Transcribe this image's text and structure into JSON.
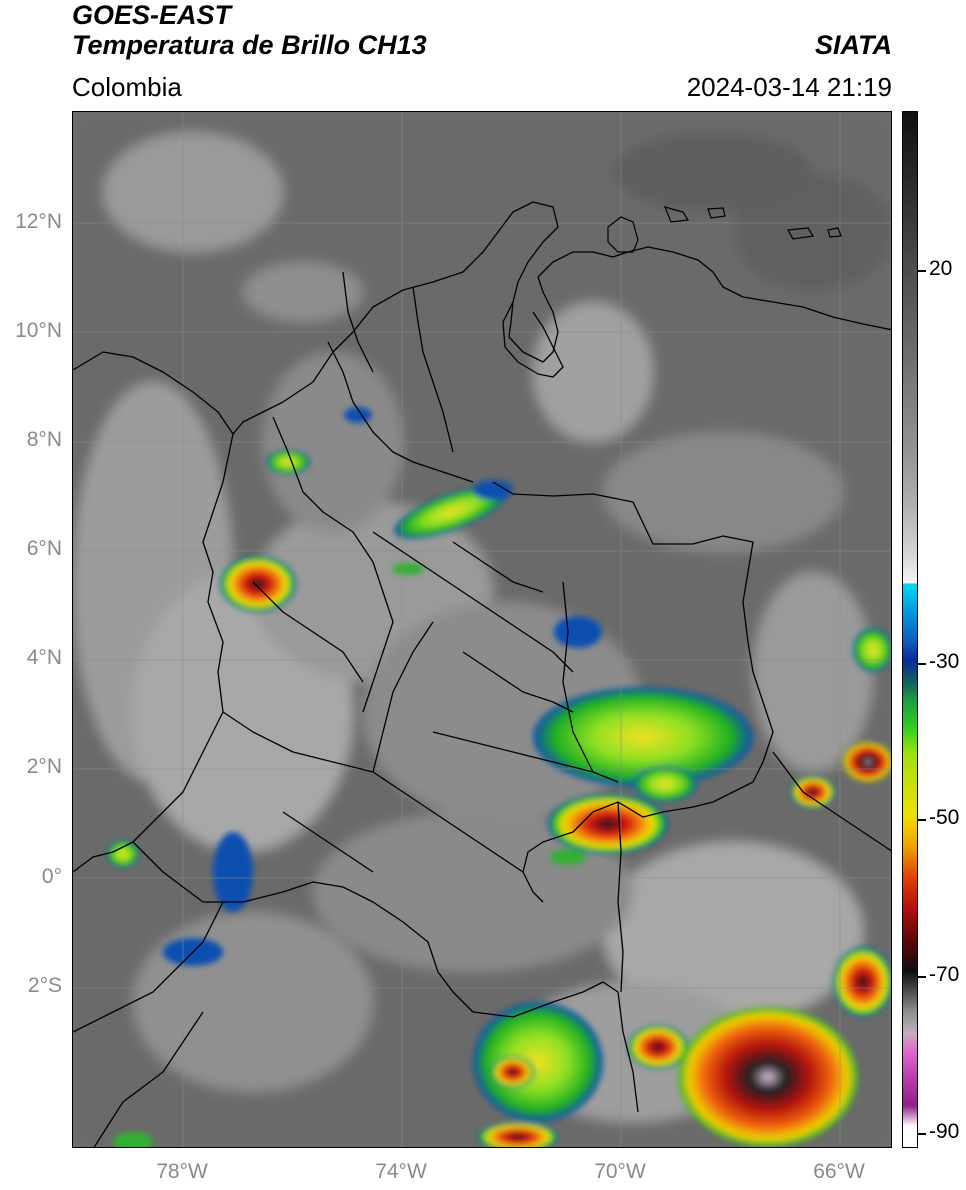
{
  "header": {
    "satellite": "GOES-EAST",
    "product": "Temperatura de Brillo CH13",
    "organization": "SIATA",
    "region": "Colombia",
    "timestamp": "2024-03-14 21:19"
  },
  "map": {
    "lat_labels": [
      "12°N",
      "10°N",
      "8°N",
      "6°N",
      "4°N",
      "2°N",
      "0°",
      "2°S"
    ],
    "lon_labels": [
      "78°W",
      "74°W",
      "70°W",
      "66°W"
    ]
  },
  "colorbar": {
    "labels": [
      "20",
      "-30",
      "-50",
      "-70",
      "-90"
    ],
    "colors": {
      "warm": "#2a2a2a",
      "neutral": "#ffffff",
      "cyan": "#00c8f0",
      "blue": "#0a2a9a",
      "green": "#20d020",
      "yellow": "#f0e000",
      "red": "#e01010",
      "black": "#101010",
      "magenta": "#e040c0"
    }
  }
}
